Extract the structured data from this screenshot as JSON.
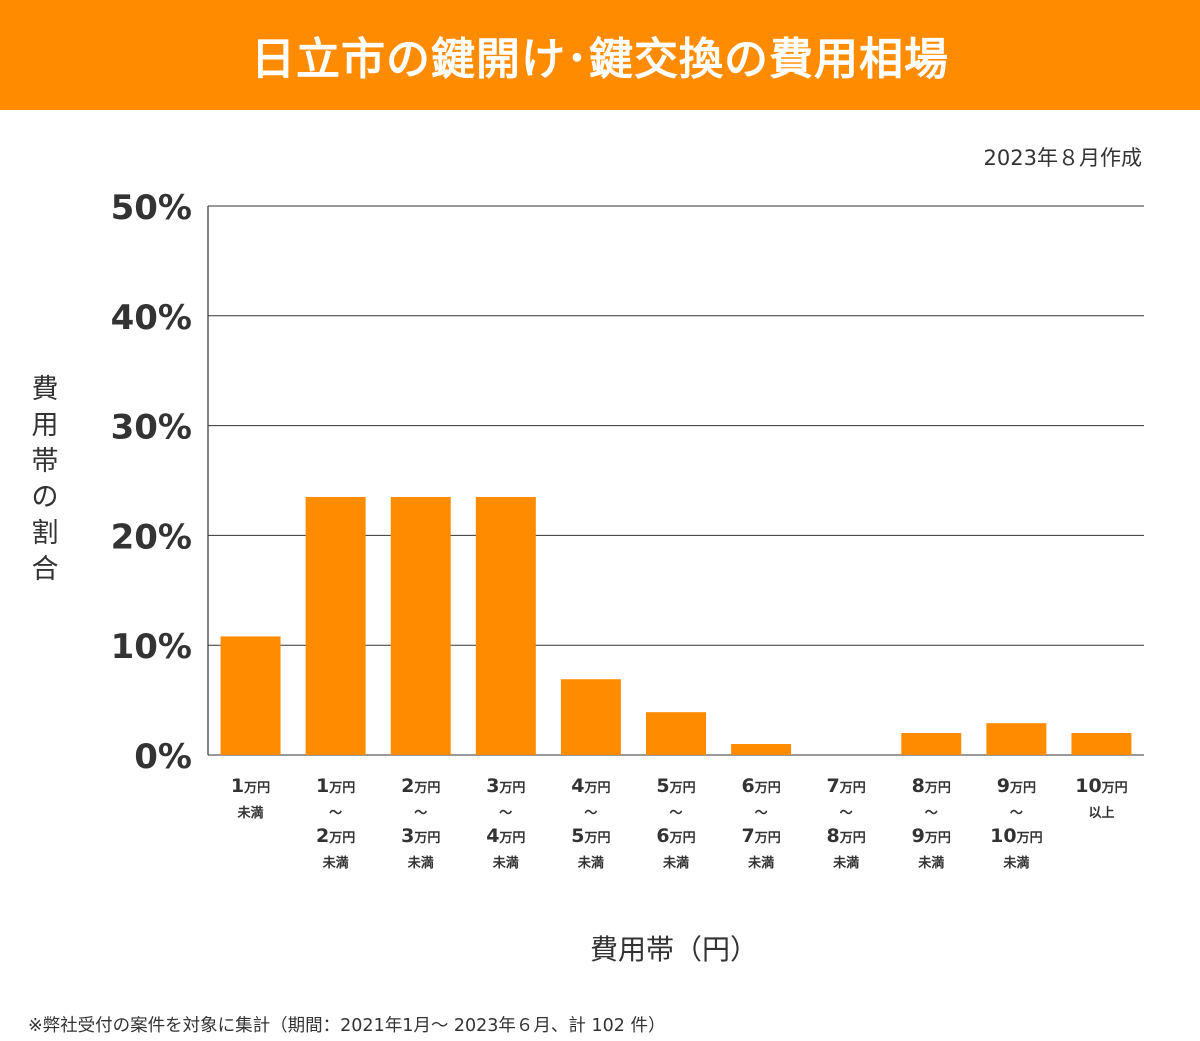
{
  "header": {
    "title": "日立市の鍵開け･鍵交換の費用相場"
  },
  "created_label": "2023年８月作成",
  "colors": {
    "accent": "#ff8c00",
    "bar": "#ff8c00",
    "gridline": "#333333",
    "text": "#333333"
  },
  "footnote": "※弊社受付の案件を対象に集計（期間：2021年1月～ 2023年６月、計 102 件）",
  "chart_data": {
    "type": "bar",
    "title": "日立市の鍵開け･鍵交換の費用相場",
    "xlabel": "費用帯（円）",
    "ylabel": "費用帯の割合",
    "ylim": [
      0,
      50
    ],
    "yticks": [
      "0%",
      "10%",
      "20%",
      "30%",
      "40%",
      "50%"
    ],
    "grid": true,
    "categories": [
      {
        "lines": [
          [
            "1",
            "万円"
          ],
          [
            "未満"
          ]
        ]
      },
      {
        "lines": [
          [
            "1",
            "万円"
          ],
          [
            "～"
          ],
          [
            "2",
            "万円"
          ],
          [
            "未満"
          ]
        ]
      },
      {
        "lines": [
          [
            "2",
            "万円"
          ],
          [
            "～"
          ],
          [
            "3",
            "万円"
          ],
          [
            "未満"
          ]
        ]
      },
      {
        "lines": [
          [
            "3",
            "万円"
          ],
          [
            "～"
          ],
          [
            "4",
            "万円"
          ],
          [
            "未満"
          ]
        ]
      },
      {
        "lines": [
          [
            "4",
            "万円"
          ],
          [
            "～"
          ],
          [
            "5",
            "万円"
          ],
          [
            "未満"
          ]
        ]
      },
      {
        "lines": [
          [
            "5",
            "万円"
          ],
          [
            "～"
          ],
          [
            "6",
            "万円"
          ],
          [
            "未満"
          ]
        ]
      },
      {
        "lines": [
          [
            "6",
            "万円"
          ],
          [
            "～"
          ],
          [
            "7",
            "万円"
          ],
          [
            "未満"
          ]
        ]
      },
      {
        "lines": [
          [
            "7",
            "万円"
          ],
          [
            "～"
          ],
          [
            "8",
            "万円"
          ],
          [
            "未満"
          ]
        ]
      },
      {
        "lines": [
          [
            "8",
            "万円"
          ],
          [
            "～"
          ],
          [
            "9",
            "万円"
          ],
          [
            "未満"
          ]
        ]
      },
      {
        "lines": [
          [
            "9",
            "万円"
          ],
          [
            "～"
          ],
          [
            "10",
            "万円"
          ],
          [
            "未満"
          ]
        ]
      },
      {
        "lines": [
          [
            "10",
            "万円"
          ],
          [
            "以上"
          ]
        ]
      }
    ],
    "values": [
      10.8,
      23.5,
      23.5,
      23.5,
      6.9,
      3.9,
      1.0,
      0,
      2.0,
      2.9,
      2.0
    ]
  }
}
